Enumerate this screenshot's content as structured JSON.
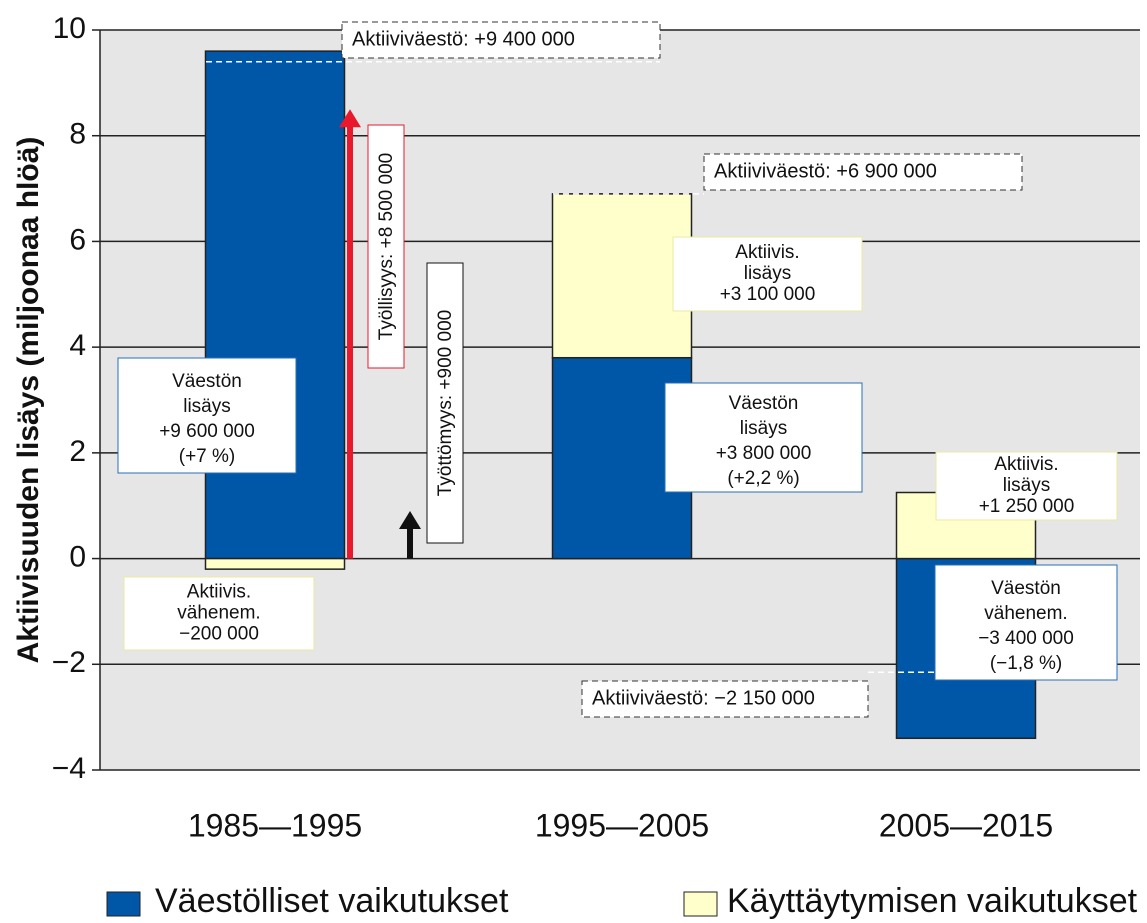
{
  "chart_data": {
    "type": "bar",
    "ylabel": "Aktiivisuuden lisäys (miljoonaa hlöä)",
    "categories": [
      "1985—1995",
      "1995—2005",
      "2005—2015"
    ],
    "series": [
      {
        "name": "Väestölliset vaikutukset",
        "color": "#0057a8",
        "values": [
          9.6,
          3.8,
          -3.4
        ]
      },
      {
        "name": "Käyttäytymisen vaikutukset",
        "color": "#ffffcc",
        "values": [
          -0.2,
          3.1,
          1.25
        ]
      }
    ],
    "ylim": [
      -4,
      10
    ],
    "yticks": [
      {
        "value": -4,
        "label": "−4"
      },
      {
        "value": -2,
        "label": "−2"
      },
      0,
      2,
      4,
      6,
      8,
      10
    ],
    "grid": true,
    "boxes": [
      {
        "lines": [
          "Väestön",
          "lisäys",
          "+9 600 000",
          "(+7 %)"
        ],
        "color": "#2a6db5"
      },
      {
        "lines": [
          "Aktiivis.",
          "vähenem.",
          "−200 000"
        ],
        "color": "#eee8a0"
      },
      {
        "lines": [
          "Aktiivis.",
          "lisäys",
          "+3 100 000"
        ],
        "color": "#eee8a0"
      },
      {
        "lines": [
          "Väestön",
          "lisäys",
          "+3 800 000",
          "(+2,2 %)"
        ],
        "color": "#2a6db5"
      },
      {
        "lines": [
          "Aktiivis.",
          "lisäys",
          "+1 250 000"
        ],
        "color": "#eee8a0"
      },
      {
        "lines": [
          "Väestön",
          "vähenem.",
          "−3 400 000",
          "(−1,8 %)"
        ],
        "color": "#2a6db5"
      }
    ],
    "totals": [
      {
        "label": "Aktiiviväestö: +9 400 000",
        "value": 9.4
      },
      {
        "label": "Aktiiviväestö: +6 900 000",
        "value": 6.9
      },
      {
        "label": "Aktiiviväestö: −2 150 000",
        "value": -2.15
      }
    ],
    "arrows": [
      {
        "label": "Työllisyys: +8 500 000",
        "value": 8.5,
        "color": "#e8192c"
      },
      {
        "label": "Työttömyys: +900 000",
        "value": 0.9,
        "color": "#111111"
      }
    ]
  }
}
